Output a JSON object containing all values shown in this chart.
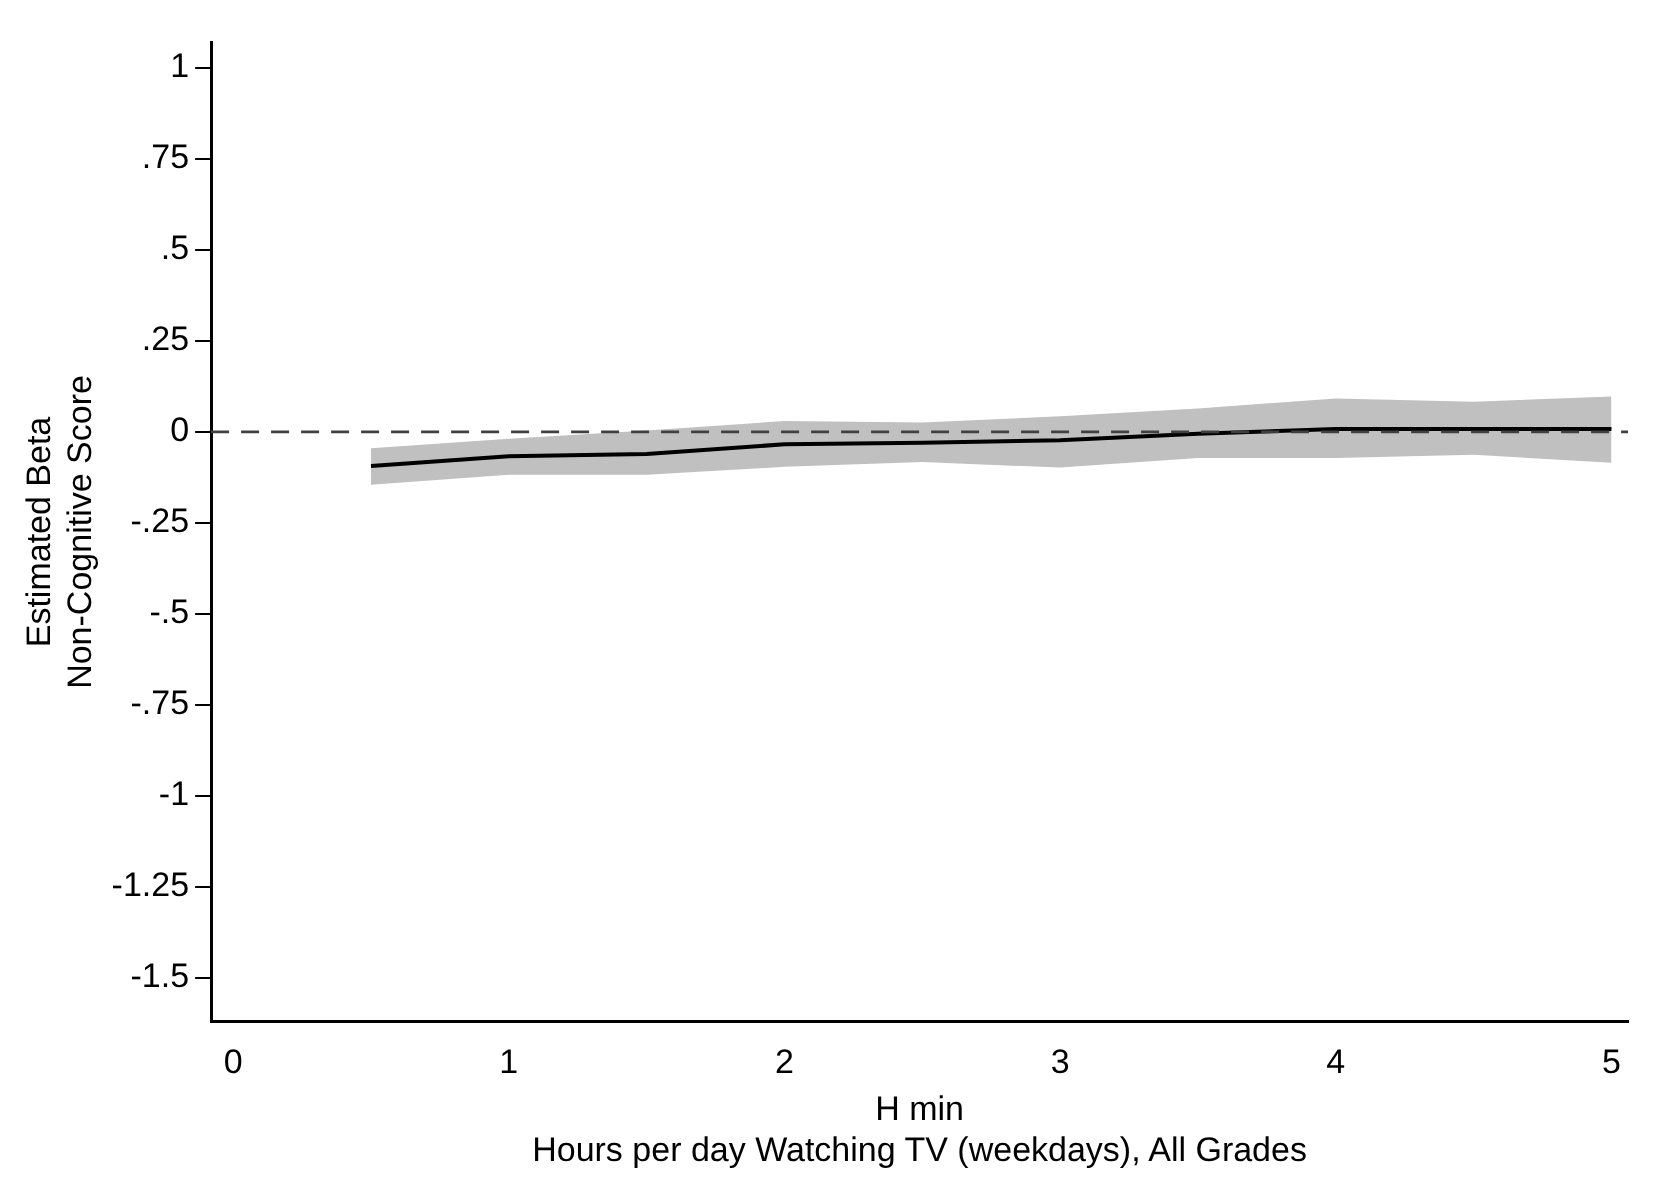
{
  "chart_data": {
    "type": "line",
    "xlabel": "H min\nHours per day Watching TV (weekdays), All Grades",
    "ylabel": "Estimated Beta\nNon-Cognitive Score",
    "x": [
      0.5,
      1,
      1.5,
      2,
      2.5,
      3,
      3.5,
      4,
      4.5,
      5
    ],
    "series": [
      {
        "color": "#000000",
        "values": [
          -0.094,
          -0.067,
          -0.061,
          -0.034,
          -0.03,
          -0.023,
          -0.005,
          0.008,
          0.008,
          0.008
        ],
        "lower": [
          -0.145,
          -0.118,
          -0.118,
          -0.096,
          -0.083,
          -0.098,
          -0.072,
          -0.072,
          -0.063,
          -0.085
        ],
        "upper": [
          -0.045,
          -0.019,
          0.004,
          0.03,
          0.026,
          0.043,
          0.064,
          0.092,
          0.083,
          0.097
        ]
      }
    ],
    "xlim": [
      -0.08,
      5.06
    ],
    "xticks": [
      0,
      1,
      2,
      3,
      4,
      5
    ],
    "ylim": [
      -1.62,
      1.07
    ],
    "yticks": [
      {
        "value": -1.5,
        "label": "-1.5"
      },
      {
        "value": -1.25,
        "label": "-1.25"
      },
      {
        "value": -1,
        "label": "-1"
      },
      {
        "value": -0.75,
        "label": "-.75"
      },
      {
        "value": -0.5,
        "label": "-.5"
      },
      {
        "value": -0.25,
        "label": "-.25"
      },
      {
        "value": 0,
        "label": "0"
      },
      {
        "value": 0.25,
        "label": ".25"
      },
      {
        "value": 0.5,
        "label": ".5"
      },
      {
        "value": 0.75,
        "label": ".75"
      },
      {
        "value": 1,
        "label": "1"
      }
    ],
    "ref_lines": [
      {
        "axis": "y",
        "value": 0,
        "color": "#404040",
        "line_style": "dashed"
      }
    ],
    "grid": false,
    "legend": false,
    "marker": "none",
    "line_style": "solid"
  }
}
